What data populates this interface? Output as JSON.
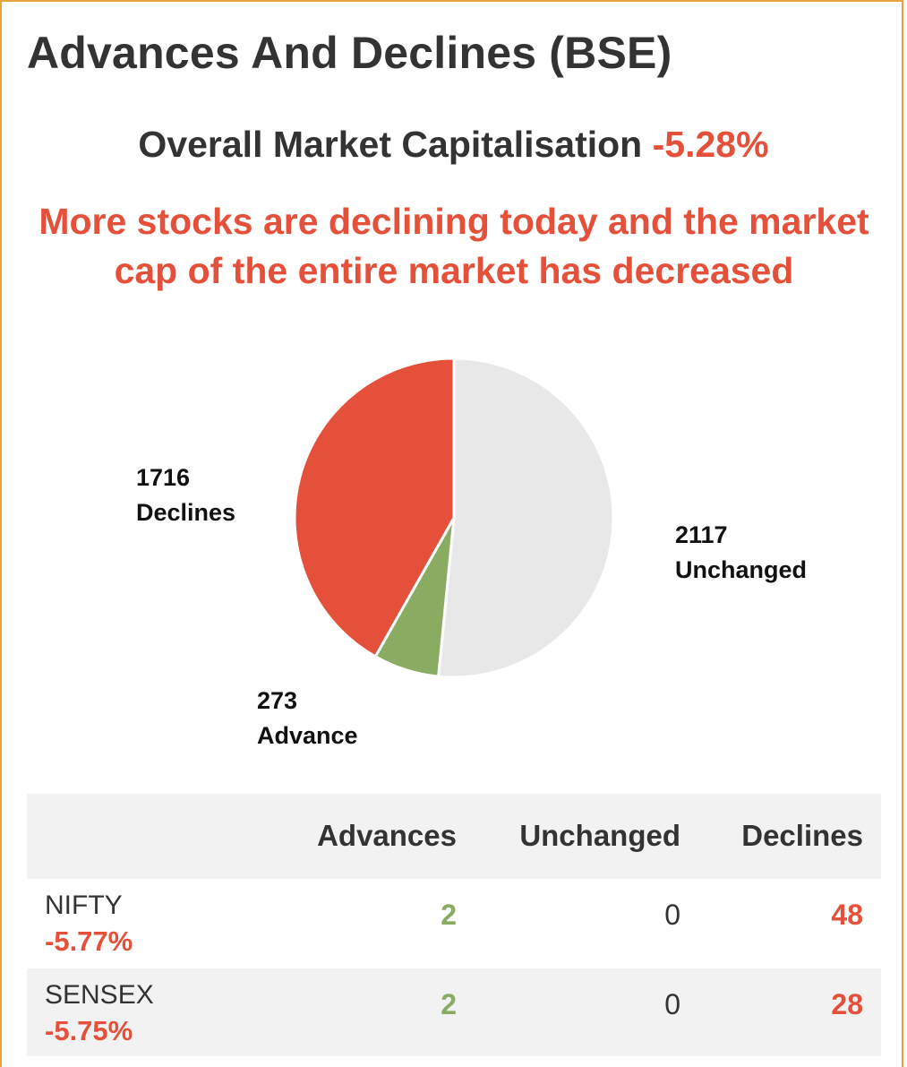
{
  "title": "Advances And Declines (BSE)",
  "market_cap": {
    "label": "Overall Market Capitalisation",
    "change": "-5.28%"
  },
  "headline": "More stocks are declining today and the market cap of the entire market has decreased",
  "colors": {
    "declines": "#e4503a",
    "advance": "#8aac62",
    "unchanged": "#e8e8e8",
    "border": "#e8a33d"
  },
  "chart_data": {
    "type": "pie",
    "slices": [
      {
        "label": "Unchanged",
        "value": 2117,
        "color": "#e8e8e8"
      },
      {
        "label": "Advance",
        "value": 273,
        "color": "#8aac62"
      },
      {
        "label": "Declines",
        "value": 1716,
        "color": "#e4503a"
      }
    ]
  },
  "table": {
    "headers": [
      "",
      "Advances",
      "Unchanged",
      "Declines"
    ],
    "rows": [
      {
        "name": "NIFTY",
        "change": "-5.77%",
        "advances": "2",
        "unchanged": "0",
        "declines": "48"
      },
      {
        "name": "SENSEX",
        "change": "-5.75%",
        "advances": "2",
        "unchanged": "0",
        "declines": "28"
      }
    ]
  }
}
